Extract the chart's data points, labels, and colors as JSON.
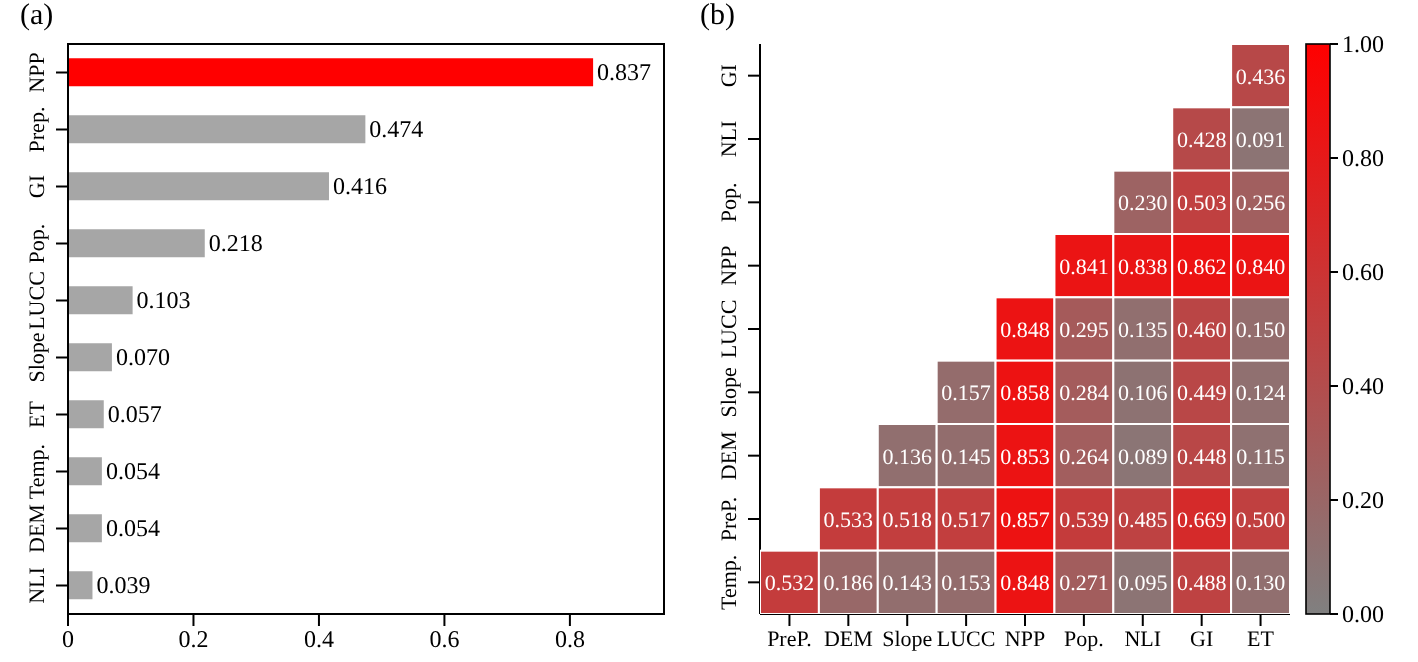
{
  "chart_data": [
    {
      "type": "bar",
      "title": "(a)",
      "orientation": "horizontal",
      "categories": [
        "NPP",
        "Prep.",
        "GI",
        "Pop.",
        "LUCC",
        "Slope",
        "ET",
        "Temp.",
        "DEM",
        "NLI"
      ],
      "values": [
        0.837,
        0.474,
        0.416,
        0.218,
        0.103,
        0.07,
        0.057,
        0.054,
        0.054,
        0.039
      ],
      "colors": [
        "#ff0000",
        "#a6a6a6",
        "#a6a6a6",
        "#a6a6a6",
        "#a6a6a6",
        "#a6a6a6",
        "#a6a6a6",
        "#a6a6a6",
        "#a6a6a6",
        "#a6a6a6"
      ],
      "value_labels": [
        "0.837",
        "0.474",
        "0.416",
        "0.218",
        "0.103",
        "0.070",
        "0.057",
        "0.054",
        "0.054",
        "0.039"
      ],
      "xlim": [
        0,
        0.95
      ],
      "xticks": [
        0,
        0.2,
        0.4,
        0.6,
        0.8
      ]
    },
    {
      "type": "heatmap",
      "title": "(b)",
      "categories": [
        "PreP.",
        "DEM",
        "Slope",
        "LUCC",
        "NPP",
        "Pop.",
        "NLI",
        "GI",
        "ET"
      ],
      "y_categories": [
        "GI",
        "NLI",
        "Pop.",
        "NPP",
        "LUCC",
        "Slope",
        "DEM",
        "PreP.",
        "Temp."
      ],
      "cells": [
        [
          null,
          null,
          null,
          null,
          null,
          null,
          null,
          null,
          0.436
        ],
        [
          null,
          null,
          null,
          null,
          null,
          null,
          null,
          0.428,
          0.091
        ],
        [
          null,
          null,
          null,
          null,
          null,
          null,
          0.23,
          0.503,
          0.256
        ],
        [
          null,
          null,
          null,
          null,
          null,
          0.841,
          0.838,
          0.862,
          0.84
        ],
        [
          null,
          null,
          null,
          null,
          0.848,
          0.295,
          0.135,
          0.46,
          0.15
        ],
        [
          null,
          null,
          null,
          0.157,
          0.858,
          0.284,
          0.106,
          0.449,
          0.124
        ],
        [
          null,
          null,
          0.136,
          0.145,
          0.853,
          0.264,
          0.089,
          0.448,
          0.115
        ],
        [
          null,
          0.533,
          0.518,
          0.517,
          0.857,
          0.539,
          0.485,
          0.669,
          0.5
        ],
        [
          0.532,
          0.186,
          0.143,
          0.153,
          0.848,
          0.271,
          0.095,
          0.488,
          0.13
        ]
      ],
      "cell_labels": [
        [
          null,
          null,
          null,
          null,
          null,
          null,
          null,
          null,
          "0.436"
        ],
        [
          null,
          null,
          null,
          null,
          null,
          null,
          null,
          "0.428",
          "0.091"
        ],
        [
          null,
          null,
          null,
          null,
          null,
          null,
          "0.230",
          "0.503",
          "0.256"
        ],
        [
          null,
          null,
          null,
          null,
          null,
          "0.841",
          "0.838",
          "0.862",
          "0.840"
        ],
        [
          null,
          null,
          null,
          null,
          "0.848",
          "0.295",
          "0.135",
          "0.460",
          "0.150"
        ],
        [
          null,
          null,
          null,
          "0.157",
          "0.858",
          "0.284",
          "0.106",
          "0.449",
          "0.124"
        ],
        [
          null,
          null,
          "0.136",
          "0.145",
          "0.853",
          "0.264",
          "0.089",
          "0.448",
          "0.115"
        ],
        [
          null,
          "0.533",
          "0.518",
          "0.517",
          "0.857",
          "0.539",
          "0.485",
          "0.669",
          "0.500"
        ],
        [
          "0.532",
          "0.186",
          "0.143",
          "0.153",
          "0.848",
          "0.271",
          "0.095",
          "0.488",
          "0.130"
        ]
      ],
      "clim": [
        0,
        1
      ],
      "cticks": [
        {
          "value": 0,
          "label": "0.00"
        },
        {
          "value": 0.2,
          "label": "0.20"
        },
        {
          "value": 0.4,
          "label": "0.40"
        },
        {
          "value": 0.6,
          "label": "0.60"
        },
        {
          "value": 0.8,
          "label": "0.80"
        },
        {
          "value": 1,
          "label": "1.00"
        }
      ]
    }
  ]
}
